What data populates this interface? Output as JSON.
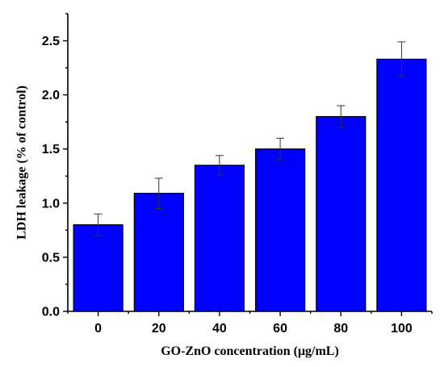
{
  "chart_data": {
    "type": "bar",
    "categories": [
      "0",
      "20",
      "40",
      "60",
      "80",
      "100"
    ],
    "values": [
      0.8,
      1.09,
      1.35,
      1.5,
      1.8,
      2.33
    ],
    "errors": [
      0.1,
      0.14,
      0.09,
      0.1,
      0.1,
      0.16
    ],
    "xlabel": "GO-ZnO concentration (μg/mL)",
    "ylabel": "LDH leakage (% of control)",
    "ylim": [
      0,
      2.75
    ],
    "yticks": [
      "0.0",
      "0.5",
      "1.0",
      "1.5",
      "2.0",
      "2.5"
    ],
    "bar_color": "#0000ff",
    "grid": false,
    "legend": "none"
  }
}
